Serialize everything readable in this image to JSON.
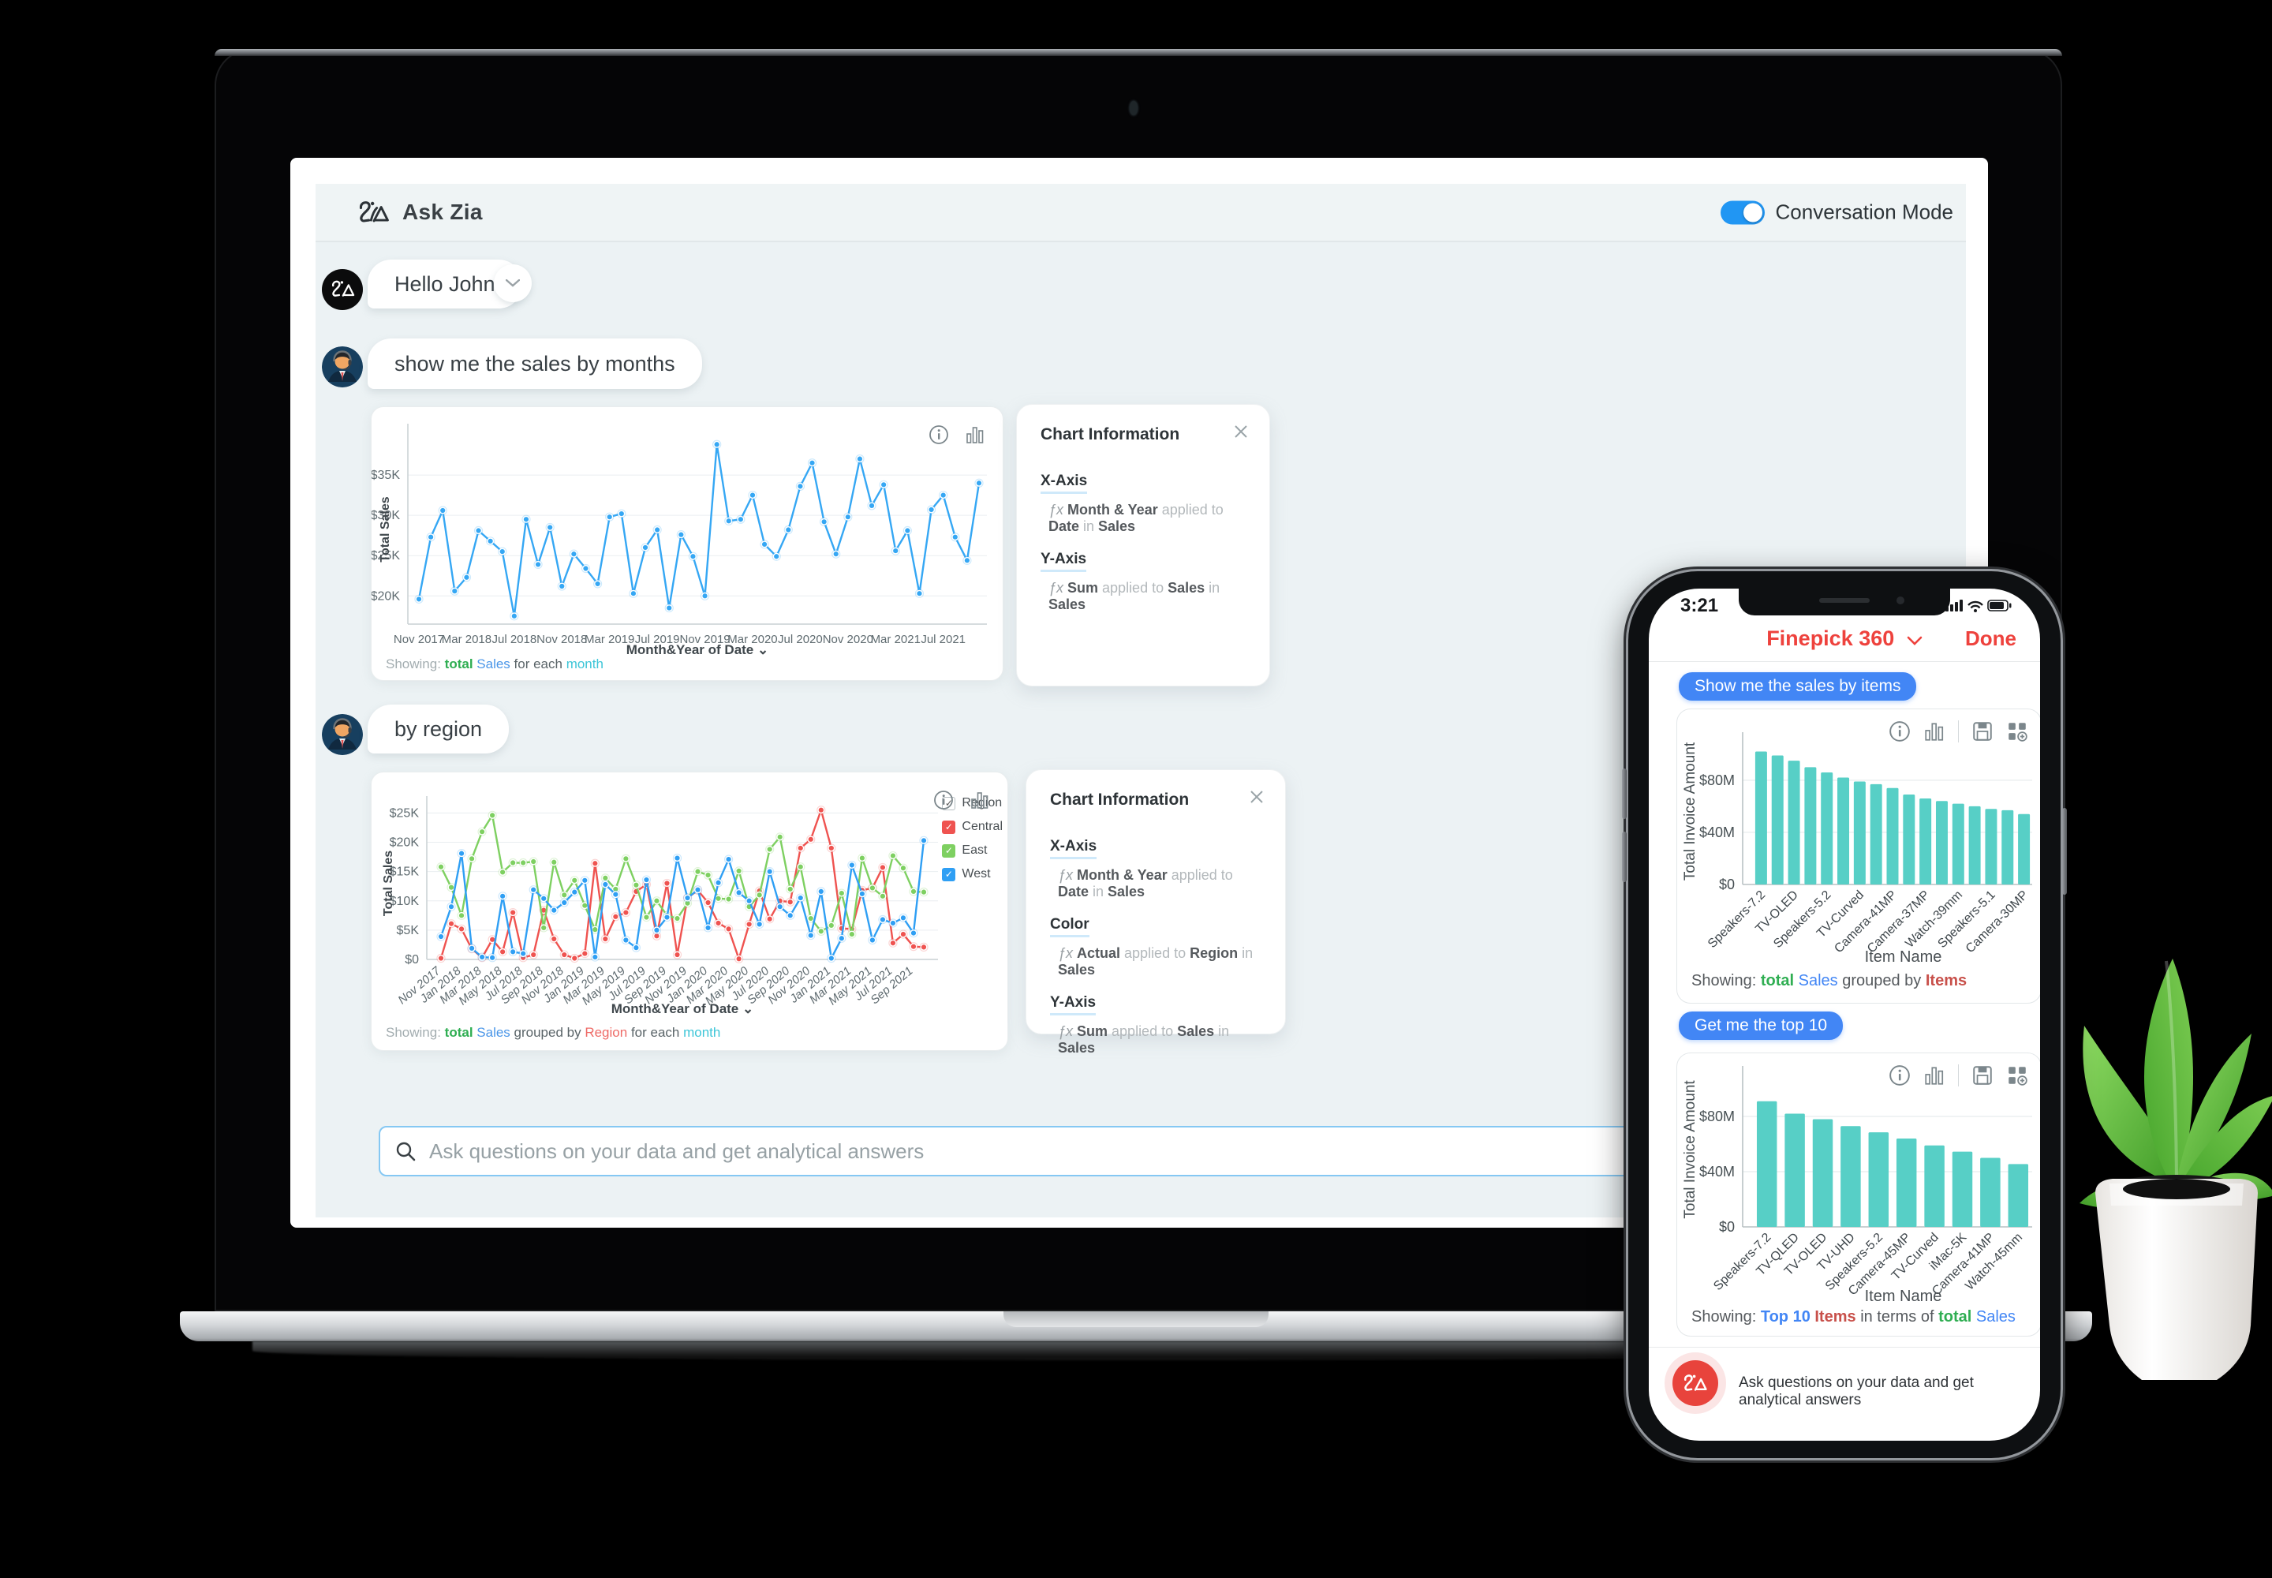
{
  "colors": {
    "accent_blue": "#2196f3",
    "line_blue": "#35a7f4",
    "central_red": "#ef5350",
    "east_green": "#7ed061",
    "west_blue": "#2f9ff4",
    "teal_bar": "#57cfc6",
    "chip_blue": "#4286f5",
    "phone_red": "#ee423d",
    "app_bg": "#ecf2f4"
  },
  "laptop": {
    "header": {
      "title": "Ask Zia",
      "toggle_label": "Conversation Mode",
      "toggle_on": true
    },
    "chat": {
      "greeting": "Hello John",
      "user_msg_1": "show me the sales by months",
      "user_msg_2": "by region"
    },
    "input": {
      "placeholder": "Ask questions on your data and get analytical answers"
    },
    "showing_1": [
      {
        "t": "Showing: ",
        "c": "#a3adb0"
      },
      {
        "t": "total ",
        "c": "#2fae52",
        "b": true
      },
      {
        "t": "Sales ",
        "c": "#4a96e8"
      },
      {
        "t": "for each ",
        "c": "#5a6468"
      },
      {
        "t": "month",
        "c": "#3ec6d8"
      }
    ],
    "showing_2": [
      {
        "t": "Showing: ",
        "c": "#a3adb0"
      },
      {
        "t": "total ",
        "c": "#2fae52",
        "b": true
      },
      {
        "t": "Sales ",
        "c": "#4a96e8"
      },
      {
        "t": "grouped by ",
        "c": "#5a6468"
      },
      {
        "t": "Region ",
        "c": "#ee6a66"
      },
      {
        "t": "for each ",
        "c": "#5a6468"
      },
      {
        "t": "month",
        "c": "#3ec6d8"
      }
    ],
    "chart_info_1": {
      "title": "Chart Information",
      "sections": [
        {
          "label": "X-Axis",
          "fx": [
            {
              "t": "ƒx ",
              "c": "#9aa0a4",
              "i": true
            },
            {
              "t": "Month & Year ",
              "c": "#55595d",
              "b": true
            },
            {
              "t": "applied to ",
              "c": "#b3b8bb"
            },
            {
              "t": "Date ",
              "c": "#55595d",
              "b": true
            },
            {
              "t": "in ",
              "c": "#b3b8bb"
            },
            {
              "t": "Sales",
              "c": "#55595d",
              "b": true
            }
          ]
        },
        {
          "label": "Y-Axis",
          "fx": [
            {
              "t": "ƒx ",
              "c": "#9aa0a4",
              "i": true
            },
            {
              "t": "Sum ",
              "c": "#55595d",
              "b": true
            },
            {
              "t": "applied to ",
              "c": "#b3b8bb"
            },
            {
              "t": "Sales ",
              "c": "#55595d",
              "b": true
            },
            {
              "t": "in ",
              "c": "#b3b8bb"
            },
            {
              "t": "Sales",
              "c": "#55595d",
              "b": true
            }
          ]
        }
      ]
    },
    "chart_info_2": {
      "title": "Chart Information",
      "sections": [
        {
          "label": "X-Axis",
          "fx": [
            {
              "t": "ƒx ",
              "c": "#9aa0a4",
              "i": true
            },
            {
              "t": "Month & Year ",
              "c": "#55595d",
              "b": true
            },
            {
              "t": "applied to ",
              "c": "#b3b8bb"
            },
            {
              "t": "Date ",
              "c": "#55595d",
              "b": true
            },
            {
              "t": "in ",
              "c": "#b3b8bb"
            },
            {
              "t": "Sales",
              "c": "#55595d",
              "b": true
            }
          ]
        },
        {
          "label": "Color",
          "fx": [
            {
              "t": "ƒx ",
              "c": "#9aa0a4",
              "i": true
            },
            {
              "t": "Actual ",
              "c": "#55595d",
              "b": true
            },
            {
              "t": "applied to ",
              "c": "#b3b8bb"
            },
            {
              "t": "Region ",
              "c": "#55595d",
              "b": true
            },
            {
              "t": "in ",
              "c": "#b3b8bb"
            },
            {
              "t": "Sales",
              "c": "#55595d",
              "b": true
            }
          ]
        },
        {
          "label": "Y-Axis",
          "fx": [
            {
              "t": "ƒx ",
              "c": "#9aa0a4",
              "i": true
            },
            {
              "t": "Sum ",
              "c": "#55595d",
              "b": true
            },
            {
              "t": "applied to ",
              "c": "#b3b8bb"
            },
            {
              "t": "Sales ",
              "c": "#55595d",
              "b": true
            },
            {
              "t": "in ",
              "c": "#b3b8bb"
            },
            {
              "t": "Sales",
              "c": "#55595d",
              "b": true
            }
          ]
        }
      ]
    },
    "legend": {
      "title": "Region",
      "items": [
        {
          "label": "Central",
          "color": "#ef5350"
        },
        {
          "label": "East",
          "color": "#7ed061"
        },
        {
          "label": "West",
          "color": "#2f9ff4"
        }
      ]
    }
  },
  "phone": {
    "status_time": "3:21",
    "header_title": "Finepick 360",
    "done_label": "Done",
    "chip_1": "Show me the sales by items",
    "chip_2": "Get me the top 10",
    "input_text": "Ask questions on your data and get analytical answers",
    "showing_1": [
      {
        "t": "Showing: ",
        "c": "#55595d"
      },
      {
        "t": "total ",
        "c": "#2fae52",
        "b": true
      },
      {
        "t": "Sales ",
        "c": "#4286f5"
      },
      {
        "t": "grouped by ",
        "c": "#55595d"
      },
      {
        "t": "Items",
        "c": "#c8504a",
        "b": true
      }
    ],
    "showing_2": [
      {
        "t": "Showing: ",
        "c": "#55595d"
      },
      {
        "t": "Top 10 ",
        "c": "#4286f5",
        "b": true
      },
      {
        "t": "Items ",
        "c": "#c8504a",
        "b": true
      },
      {
        "t": "in terms of ",
        "c": "#55595d"
      },
      {
        "t": "total ",
        "c": "#2fae52",
        "b": true
      },
      {
        "t": "Sales",
        "c": "#4286f5"
      }
    ]
  },
  "chart_data": [
    {
      "id": "sales-by-month",
      "type": "line",
      "title": "",
      "xlabel": "Month&Year of Date",
      "ylabel": "Total Sales",
      "x_tick_labels": [
        "Nov 2017",
        "Mar 2018",
        "Jul 2018",
        "Nov 2018",
        "Mar 2019",
        "Jul 2019",
        "Nov 2019",
        "Mar 2020",
        "Jul 2020",
        "Nov 2020",
        "Mar 2021",
        "Jul 2021"
      ],
      "x_tick_every": 4,
      "y_ticks": [
        {
          "v": 20,
          "label": "$20K"
        },
        {
          "v": 25,
          "label": "$25K"
        },
        {
          "v": 30,
          "label": "$30K"
        },
        {
          "v": 35,
          "label": "$35K"
        }
      ],
      "ylim": [
        16.5,
        40
      ],
      "unit": "K USD",
      "series": [
        {
          "name": "Total Sales",
          "color": "#35a7f4",
          "values": [
            19.6,
            27.3,
            30.6,
            20.6,
            22.3,
            28.1,
            26.8,
            25.5,
            17.5,
            29.5,
            23.9,
            28.5,
            21.2,
            25.2,
            23.4,
            21.5,
            29.8,
            30.2,
            20.3,
            26.0,
            28.2,
            18.5,
            27.6,
            24.9,
            20.0,
            38.8,
            29.3,
            29.5,
            32.5,
            26.4,
            24.9,
            28.2,
            33.6,
            36.5,
            29.2,
            25.2,
            29.8,
            37.0,
            31.2,
            33.8,
            25.6,
            28.1,
            20.3,
            30.7,
            32.5,
            27.3,
            24.4,
            34.0
          ]
        }
      ]
    },
    {
      "id": "sales-by-region",
      "type": "line",
      "title": "",
      "xlabel": "Month&Year of Date",
      "ylabel": "Total Sales",
      "legend_title": "Region",
      "x_tick_labels": [
        "Nov 2017",
        "Jan 2018",
        "Mar 2018",
        "May 2018",
        "Jul 2018",
        "Sep 2018",
        "Nov 2018",
        "Jan 2019",
        "Mar 2019",
        "May 2019",
        "Jul 2019",
        "Sep 2019",
        "Nov 2019",
        "Jan 2020",
        "Mar 2020",
        "May 2020",
        "Jul 2020",
        "Sep 2020",
        "Nov 2020",
        "Jan 2021",
        "Mar 2021",
        "May 2021",
        "Jul 2021",
        "Sep 2021"
      ],
      "x_tick_every": 2,
      "y_ticks": [
        {
          "v": 0,
          "label": "$0"
        },
        {
          "v": 5,
          "label": "$5K"
        },
        {
          "v": 10,
          "label": "$10K"
        },
        {
          "v": 15,
          "label": "$15K"
        },
        {
          "v": 20,
          "label": "$20K"
        },
        {
          "v": 25,
          "label": "$25K"
        }
      ],
      "ylim": [
        0,
        26
      ],
      "unit": "K USD",
      "series": [
        {
          "name": "Central",
          "color": "#ef5350",
          "values": [
            0.2,
            6.1,
            5.2,
            1.8,
            0.3,
            3.4,
            1.3,
            8.0,
            0.3,
            0.8,
            8.4,
            3.5,
            0.8,
            0.2,
            1.0,
            16.4,
            3.5,
            7.3,
            8.0,
            11.6,
            12.8,
            4.0,
            13.0,
            0.8,
            10.5,
            11.8,
            9.7,
            6.2,
            5.2,
            0.1,
            6.0,
            11.7,
            6.9,
            10.0,
            9.8,
            19.0,
            20.5,
            25.5,
            19.0,
            5.3,
            5.2,
            11.8,
            12.2,
            15.7,
            2.8,
            4.3,
            2.2,
            2.1
          ]
        },
        {
          "name": "East",
          "color": "#7ed061",
          "values": [
            15.8,
            12.3,
            7.5,
            17.2,
            21.8,
            24.6,
            14.9,
            16.5,
            16.5,
            16.7,
            5.4,
            16.6,
            11.0,
            13.5,
            9.2,
            5.1,
            13.9,
            12.0,
            17.2,
            12.7,
            7.2,
            10.0,
            7.5,
            7.0,
            9.6,
            15.0,
            14.4,
            10.4,
            10.3,
            15.1,
            9.0,
            11.0,
            18.8,
            20.9,
            12.0,
            15.8,
            7.0,
            4.8,
            5.8,
            11.3,
            4.3,
            17.3,
            12.2,
            10.8,
            17.7,
            15.6,
            11.6,
            11.5
          ]
        },
        {
          "name": "West",
          "color": "#2f9ff4",
          "values": [
            3.9,
            9.0,
            18.1,
            1.9,
            0.4,
            0.3,
            10.8,
            1.3,
            1.0,
            11.9,
            10.4,
            8.4,
            9.7,
            11.5,
            13.5,
            0.4,
            12.8,
            11.1,
            3.3,
            2.0,
            13.6,
            5.0,
            7.2,
            17.3,
            10.5,
            11.9,
            5.4,
            13.1,
            17.1,
            11.4,
            10.0,
            6.0,
            15.0,
            9.0,
            7.5,
            10.5,
            4.1,
            11.6,
            0.2,
            3.6,
            16.1,
            11.2,
            3.3,
            6.8,
            6.2,
            7.1,
            4.5,
            20.3
          ]
        }
      ]
    },
    {
      "id": "sales-by-items",
      "type": "bar",
      "title": "",
      "xlabel": "Item Name",
      "ylabel": "Total Invoice Amount",
      "bar_color": "#57cfc6",
      "y_ticks": [
        {
          "v": 0,
          "label": "$0"
        },
        {
          "v": 40,
          "label": "$40M"
        },
        {
          "v": 80,
          "label": "$80M"
        }
      ],
      "ylim": [
        0,
        112
      ],
      "unit": "M USD",
      "values": [
        102,
        99,
        95,
        90,
        86,
        82,
        79,
        77,
        74,
        69,
        66,
        64,
        62,
        60,
        58,
        57,
        54
      ],
      "x_labels": [
        "Speakers-7.2",
        "TV-OLED",
        "Speakers-5.2",
        "TV-Curved",
        "Camera-41MP",
        "Camera-37MP",
        "Watch-39mm",
        "Speakers-5.1",
        "Camera-30MP"
      ],
      "label_every": 2
    },
    {
      "id": "top-10-items",
      "type": "bar",
      "title": "",
      "xlabel": "Item Name",
      "ylabel": "Total Invoice Amount",
      "bar_color": "#57cfc6",
      "y_ticks": [
        {
          "v": 0,
          "label": "$0"
        },
        {
          "v": 40,
          "label": "$40M"
        },
        {
          "v": 80,
          "label": "$80M"
        }
      ],
      "ylim": [
        0,
        112
      ],
      "unit": "M USD",
      "values": [
        91,
        82,
        78,
        73,
        68.5,
        64,
        59,
        54.5,
        50,
        45.5
      ],
      "x_labels": [
        "Speakers-7.2",
        "TV-QLED",
        "TV-OLED",
        "TV-UHD",
        "Speakers-5.2",
        "Camera-45MP",
        "TV-Curved",
        "iMac-5K",
        "Camera-41MP",
        "Watch-45mm"
      ],
      "label_every": 1
    }
  ]
}
